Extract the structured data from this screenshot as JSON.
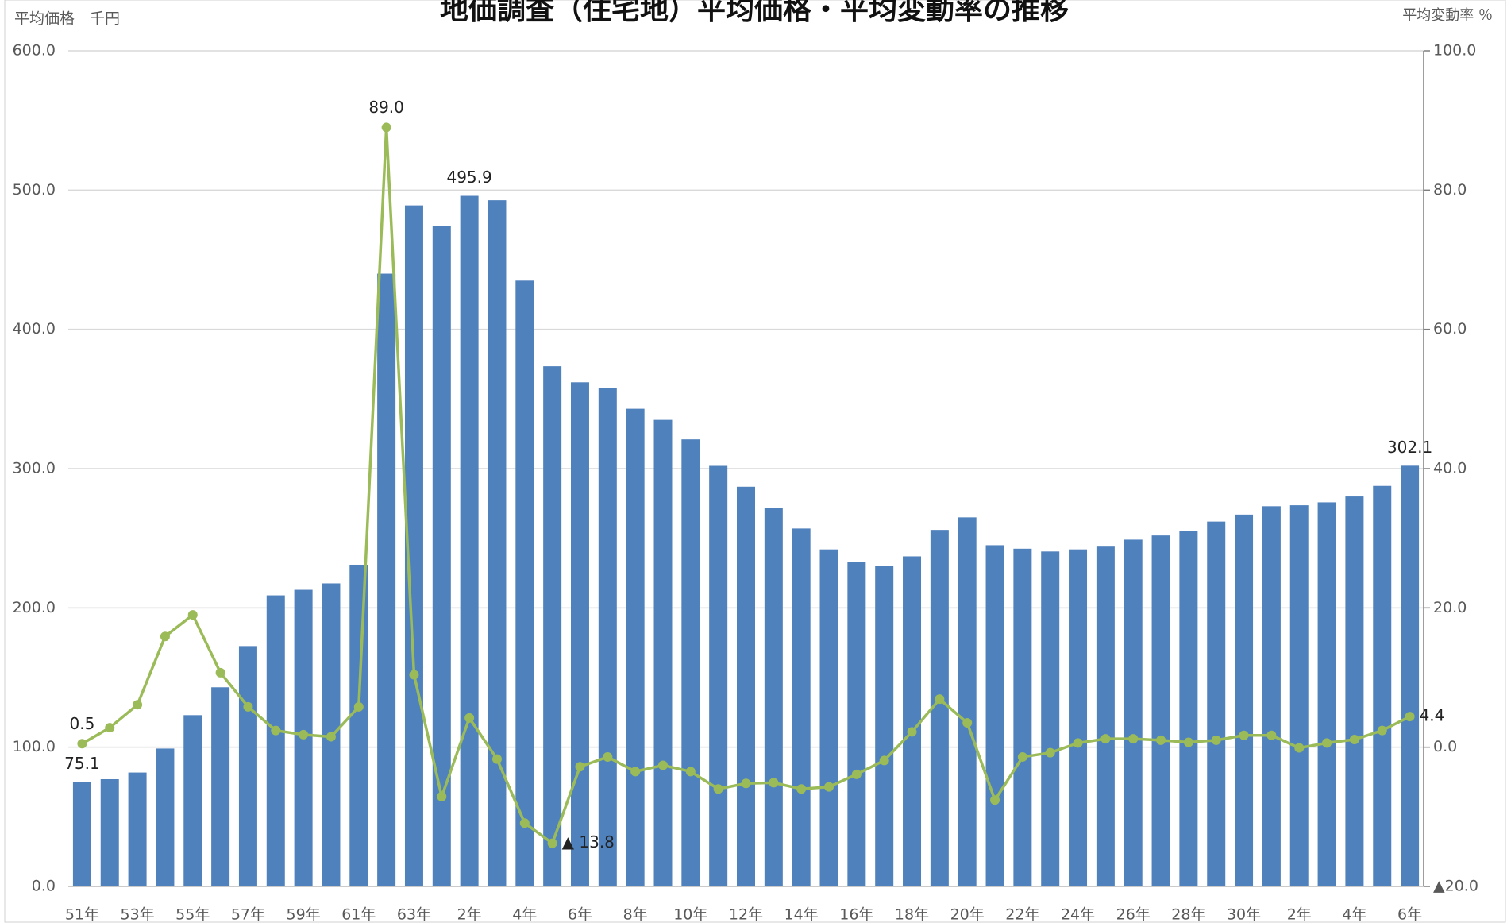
{
  "chart_data": {
    "type": "bar",
    "title": "地価調査（住宅地）平均価格・平均変動率の推移",
    "y_label": "平均価格　千円",
    "y2_label": "平均変動率 ％",
    "categories": [
      "51年",
      null,
      "53年",
      null,
      "55年",
      null,
      "57年",
      null,
      "59年",
      null,
      "61年",
      null,
      "63年",
      null,
      "2年",
      null,
      "4年",
      null,
      "6年",
      null,
      "8年",
      null,
      "10年",
      null,
      "12年",
      null,
      "14年",
      null,
      "16年",
      null,
      "18年",
      null,
      "20年",
      null,
      "22年",
      null,
      "24年",
      null,
      "26年",
      null,
      "28年",
      null,
      "30年",
      null,
      "2年",
      null,
      "4年",
      null,
      "6年"
    ],
    "series": [
      {
        "type": "bar",
        "color": "#4f81bd",
        "values": [
          75.1,
          77,
          81.8,
          99,
          123,
          143,
          172.6,
          209,
          213,
          217.6,
          231,
          440,
          489,
          474,
          495.9,
          492.7,
          435,
          373.5,
          362,
          358,
          343,
          335,
          321,
          302,
          287,
          272,
          257,
          242,
          233,
          230,
          237,
          256,
          265,
          245,
          242.5,
          240.5,
          242,
          244,
          249,
          252,
          255,
          262,
          267,
          273,
          273.7,
          275.8,
          280,
          287.6,
          302.1
        ],
        "value_labels": [
          "75.1",
          null,
          null,
          null,
          null,
          null,
          null,
          null,
          null,
          null,
          null,
          null,
          null,
          null,
          "495.9",
          null,
          null,
          null,
          null,
          null,
          null,
          null,
          null,
          null,
          null,
          null,
          null,
          null,
          null,
          null,
          null,
          null,
          null,
          null,
          null,
          null,
          null,
          null,
          null,
          null,
          null,
          null,
          null,
          null,
          null,
          null,
          null,
          null,
          "302.1"
        ]
      },
      {
        "type": "line",
        "axis": "y2",
        "color": "#9bbb59",
        "values": [
          0.5,
          2.8,
          6.1,
          15.9,
          19.0,
          10.7,
          5.8,
          2.4,
          1.8,
          1.5,
          5.8,
          89.0,
          10.4,
          -7.1,
          4.2,
          -1.7,
          -10.9,
          -13.8,
          -2.8,
          -1.4,
          -3.5,
          -2.6,
          -3.5,
          -6.0,
          -5.2,
          -5.1,
          -6.0,
          -5.7,
          -3.9,
          -1.9,
          2.2,
          6.9,
          3.5,
          -7.6,
          -1.4,
          -0.8,
          0.6,
          1.2,
          1.2,
          1.0,
          0.7,
          1.0,
          1.7,
          1.7,
          -0.1,
          0.6,
          1.1,
          2.4,
          4.4
        ],
        "value_labels": [
          "0.5",
          null,
          null,
          null,
          null,
          null,
          null,
          null,
          null,
          null,
          null,
          "89.0",
          null,
          null,
          null,
          null,
          null,
          "▲ 13.8",
          null,
          null,
          null,
          null,
          null,
          null,
          null,
          null,
          null,
          null,
          null,
          null,
          null,
          null,
          null,
          null,
          null,
          null,
          null,
          null,
          null,
          null,
          null,
          null,
          null,
          null,
          null,
          null,
          null,
          null,
          "4.4"
        ]
      }
    ],
    "ylim": [
      0,
      600
    ],
    "yticks": [
      {
        "value": 0,
        "label": "0.0"
      },
      {
        "value": 100,
        "label": "100.0"
      },
      {
        "value": 200,
        "label": "200.0"
      },
      {
        "value": 300,
        "label": "300.0"
      },
      {
        "value": 400,
        "label": "400.0"
      },
      {
        "value": 500,
        "label": "500.0"
      },
      {
        "value": 600,
        "label": "600.0"
      }
    ],
    "y2lim": [
      -20,
      100
    ],
    "y2ticks": [
      {
        "value": -20,
        "label": "▲20.0"
      },
      {
        "value": 0,
        "label": "0.0"
      },
      {
        "value": 20,
        "label": "20.0"
      },
      {
        "value": 40,
        "label": "40.0"
      },
      {
        "value": 60,
        "label": "60.0"
      },
      {
        "value": 80,
        "label": "80.0"
      },
      {
        "value": 100,
        "label": "100.0"
      }
    ],
    "grid": true
  }
}
